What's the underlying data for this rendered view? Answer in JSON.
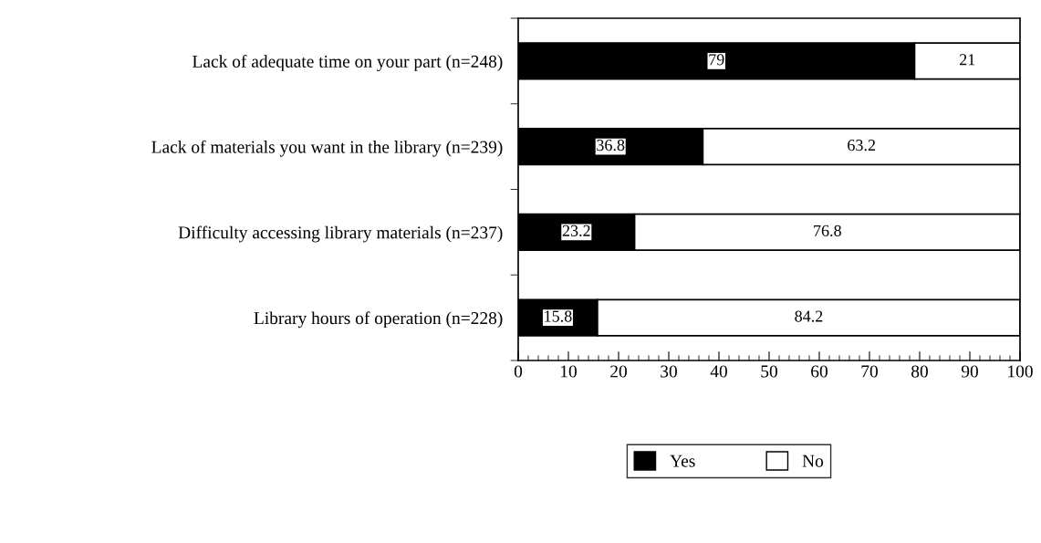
{
  "chart_data": {
    "type": "bar",
    "orientation": "horizontal",
    "stacked": true,
    "categories": [
      "Lack of adequate time on your part (n=248)",
      "Lack of materials you want in the library (n=239)",
      "Difficulty accessing library materials (n=237)",
      "Library hours of operation (n=228)"
    ],
    "series": [
      {
        "name": "Yes",
        "color": "#000000",
        "values": [
          79,
          36.8,
          23.2,
          15.8
        ]
      },
      {
        "name": "No",
        "color": "#ffffff",
        "values": [
          21,
          63.2,
          76.8,
          84.2
        ]
      }
    ],
    "xlim": [
      0,
      100
    ],
    "xticks": [
      0,
      10,
      20,
      30,
      40,
      50,
      60,
      70,
      80,
      90,
      100
    ],
    "data_labels": true,
    "legend": "bottom",
    "grid": false
  }
}
